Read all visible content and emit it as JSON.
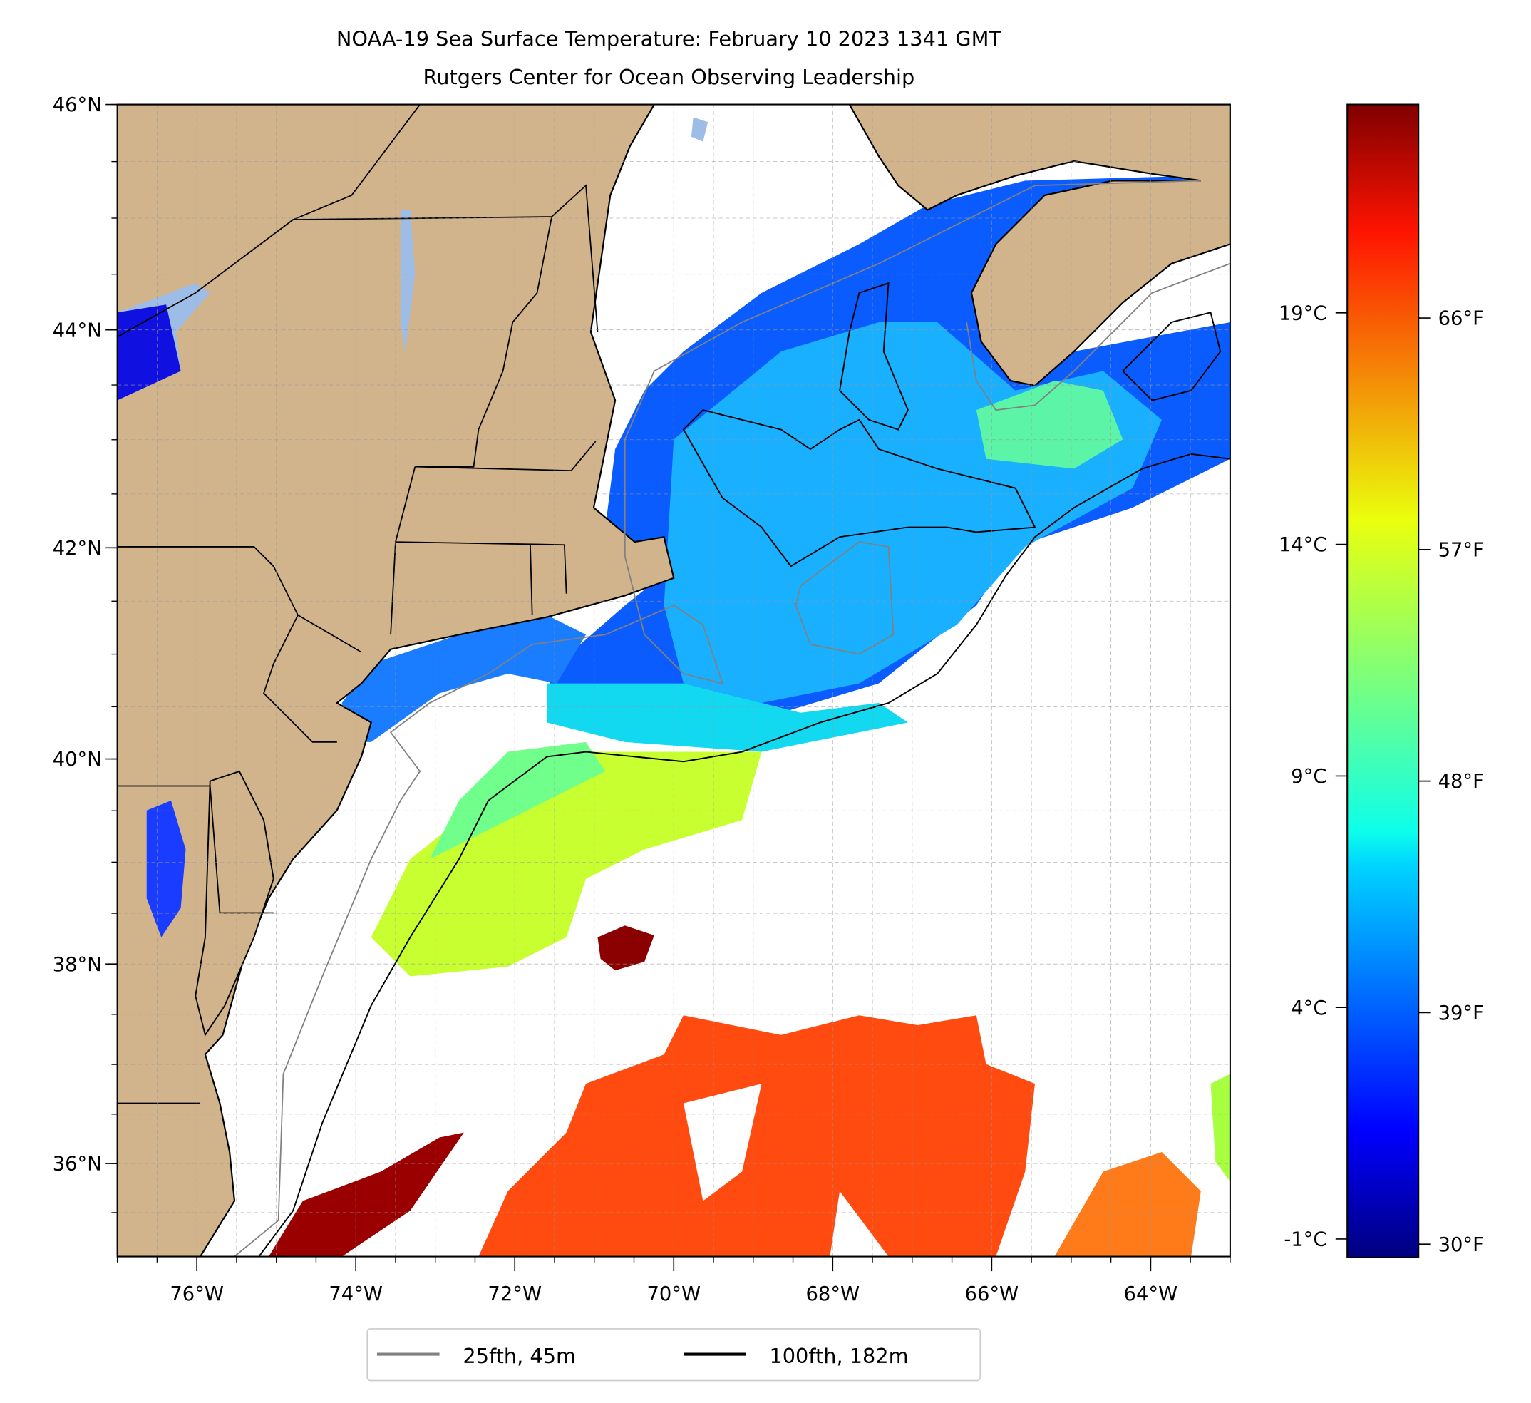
{
  "chart_data": {
    "type": "heatmap",
    "title": "NOAA-19 Sea Surface Temperature: February 10 2023 1341 GMT",
    "subtitle": "Rutgers Center for Ocean Observing Leadership",
    "lon_range": [
      -77,
      -63
    ],
    "lat_range": [
      35.05,
      46
    ],
    "lon_ticks": [
      {
        "value": -76,
        "label": "76°W"
      },
      {
        "value": -74,
        "label": "74°W"
      },
      {
        "value": -72,
        "label": "72°W"
      },
      {
        "value": -70,
        "label": "70°W"
      },
      {
        "value": -68,
        "label": "68°W"
      },
      {
        "value": -66,
        "label": "66°W"
      },
      {
        "value": -64,
        "label": "64°W"
      }
    ],
    "lat_ticks": [
      {
        "value": 46,
        "label": "46°N"
      },
      {
        "value": 44,
        "label": "44°N"
      },
      {
        "value": 42,
        "label": "42°N"
      },
      {
        "value": 40,
        "label": "40°N"
      },
      {
        "value": 38,
        "label": "38°N"
      },
      {
        "value": 36,
        "label": "36°N"
      }
    ],
    "grid": true,
    "colorbar": {
      "colormap": "jet",
      "range_c": [
        -1.4,
        23.5
      ],
      "ticks_c": [
        {
          "value": -1,
          "label": "-1°C"
        },
        {
          "value": 4,
          "label": "4°C"
        },
        {
          "value": 9,
          "label": "9°C"
        },
        {
          "value": 14,
          "label": "14°C"
        },
        {
          "value": 19,
          "label": "19°C"
        }
      ],
      "ticks_f": [
        {
          "value": 30,
          "label": "30°F"
        },
        {
          "value": 39,
          "label": "39°F"
        },
        {
          "value": 48,
          "label": "48°F"
        },
        {
          "value": 57,
          "label": "57°F"
        },
        {
          "value": 66,
          "label": "66°F"
        }
      ]
    },
    "legend": {
      "placement": "bottom-center",
      "entries": [
        {
          "label": "25fth, 45m",
          "color": "#808080"
        },
        {
          "label": "100fth, 182m",
          "color": "#000000"
        }
      ]
    },
    "colors": {
      "land": "#d2b48c",
      "lakes": "#9dbde6"
    }
  }
}
